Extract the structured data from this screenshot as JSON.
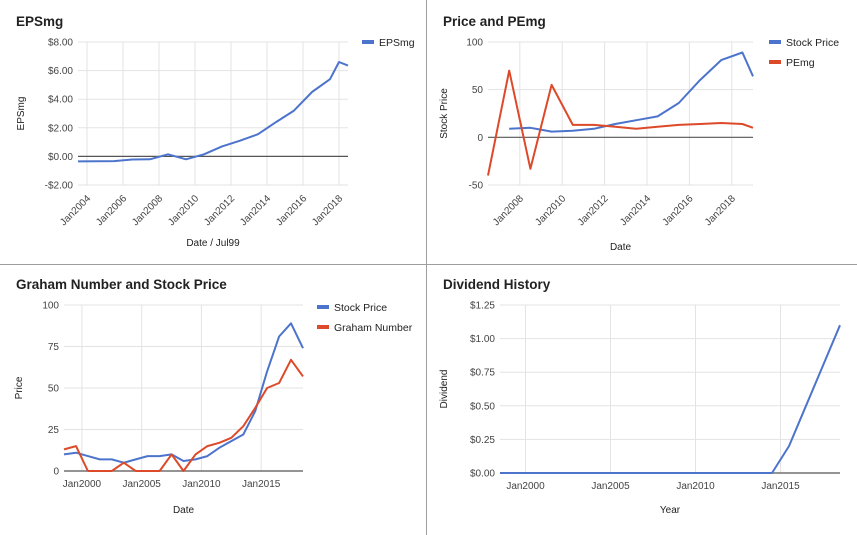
{
  "chart_data": [
    {
      "type": "line",
      "title": "EPSmg",
      "xlabel": "Date / Jul99",
      "ylabel": "EPSmg",
      "x": [
        2003.5,
        2005.5,
        2006.5,
        2007.5,
        2008.5,
        2009.5,
        2010.5,
        2011.5,
        2012.5,
        2013.5,
        2014.5,
        2015.5,
        2016.5,
        2017.5,
        2018.0,
        2018.5
      ],
      "series": [
        {
          "name": "EPSmg",
          "color": "#4d74cc",
          "values": [
            -0.35,
            -0.33,
            -0.22,
            -0.2,
            0.15,
            -0.2,
            0.15,
            0.7,
            1.1,
            1.55,
            2.4,
            3.2,
            4.5,
            5.4,
            6.6,
            6.35
          ]
        }
      ],
      "ylim": [
        -2,
        8
      ],
      "y_ticks": [
        -2,
        0,
        2,
        4,
        6,
        8
      ],
      "y_tick_labels": [
        "-$2.00",
        "$0.00",
        "$2.00",
        "$4.00",
        "$6.00",
        "$8.00"
      ],
      "x_ticks": [
        2004,
        2006,
        2008,
        2010,
        2012,
        2014,
        2016,
        2018
      ],
      "x_tick_labels": [
        "Jan2004",
        "Jan2006",
        "Jan2008",
        "Jan2010",
        "Jan2012",
        "Jan2014",
        "Jan2016",
        "Jan2018"
      ],
      "xlim": [
        2003.5,
        2018.5
      ],
      "grid": true,
      "legend": "top-right"
    },
    {
      "type": "line",
      "title": "Price and PEmg",
      "xlabel": "Date",
      "ylabel": "Stock Price",
      "x": [
        2006.5,
        2007.5,
        2008.5,
        2009.5,
        2010.5,
        2011.5,
        2012.5,
        2013.5,
        2014.5,
        2015.5,
        2016.5,
        2017.5,
        2018.5,
        2019.0
      ],
      "series": [
        {
          "name": "Stock Price",
          "color": "#4d74cc",
          "values": [
            null,
            9,
            10,
            6,
            7,
            9,
            14,
            18,
            22,
            36,
            60,
            81,
            89,
            64
          ]
        },
        {
          "name": "PEmg",
          "color": "#dc4a2a",
          "values": [
            -40,
            70,
            -33,
            55,
            13,
            13,
            11,
            9,
            11,
            13,
            14,
            15,
            14,
            10
          ]
        }
      ],
      "ylim": [
        -50,
        100
      ],
      "y_ticks": [
        -50,
        0,
        50,
        100
      ],
      "y_tick_labels": [
        "-50",
        "0",
        "50",
        "100"
      ],
      "x_ticks": [
        2008,
        2010,
        2012,
        2014,
        2016,
        2018
      ],
      "x_tick_labels": [
        "Jan2008",
        "Jan2010",
        "Jan2012",
        "Jan2014",
        "Jan2016",
        "Jan2018"
      ],
      "xlim": [
        2006.5,
        2019.0
      ],
      "grid": true,
      "legend": "top-right"
    },
    {
      "type": "line",
      "title": "Graham Number and Stock Price",
      "xlabel": "Date",
      "ylabel": "Price",
      "x": [
        1998.5,
        1999.5,
        2000.5,
        2001.5,
        2002.5,
        2003.5,
        2004.5,
        2005.5,
        2006.5,
        2007.5,
        2008.5,
        2009.5,
        2010.5,
        2011.5,
        2012.5,
        2013.5,
        2014.5,
        2015.5,
        2016.5,
        2017.5,
        2018.5
      ],
      "series": [
        {
          "name": "Stock Price",
          "color": "#4d74cc",
          "values": [
            10,
            11,
            9,
            7,
            7,
            5,
            7,
            9,
            9,
            10,
            6,
            7,
            9,
            14,
            18,
            22,
            36,
            60,
            81,
            89,
            74
          ]
        },
        {
          "name": "Graham Number",
          "color": "#dc4a2a",
          "values": [
            13,
            15,
            0,
            0,
            0,
            5,
            0,
            0,
            0,
            10,
            0,
            10,
            15,
            17,
            20,
            27,
            38,
            50,
            53,
            67,
            57
          ]
        }
      ],
      "ylim": [
        0,
        100
      ],
      "y_ticks": [
        0,
        25,
        50,
        75,
        100
      ],
      "y_tick_labels": [
        "0",
        "25",
        "50",
        "75",
        "100"
      ],
      "x_ticks": [
        2000,
        2005,
        2010,
        2015
      ],
      "x_tick_labels": [
        "Jan2000",
        "Jan2005",
        "Jan2010",
        "Jan2015"
      ],
      "xlim": [
        1998.5,
        2018.5
      ],
      "grid": true,
      "legend": "top-right"
    },
    {
      "type": "line",
      "title": "Dividend History",
      "xlabel": "Year",
      "ylabel": "Dividend",
      "x": [
        1998.5,
        2013.0,
        2014.5,
        2015.5,
        2016.5,
        2017.5,
        2018.5
      ],
      "series": [
        {
          "name": "Dividend",
          "color": "#4d74cc",
          "values": [
            0,
            0,
            0,
            0.2,
            0.5,
            0.8,
            1.1
          ]
        }
      ],
      "ylim": [
        0,
        1.25
      ],
      "y_ticks": [
        0,
        0.25,
        0.5,
        0.75,
        1.0,
        1.25
      ],
      "y_tick_labels": [
        "$0.00",
        "$0.25",
        "$0.50",
        "$0.75",
        "$1.00",
        "$1.25"
      ],
      "x_ticks": [
        2000,
        2005,
        2010,
        2015
      ],
      "x_tick_labels": [
        "Jan2000",
        "Jan2005",
        "Jan2010",
        "Jan2015"
      ],
      "xlim": [
        1998.5,
        2018.5
      ],
      "grid": true,
      "legend": "none"
    }
  ]
}
